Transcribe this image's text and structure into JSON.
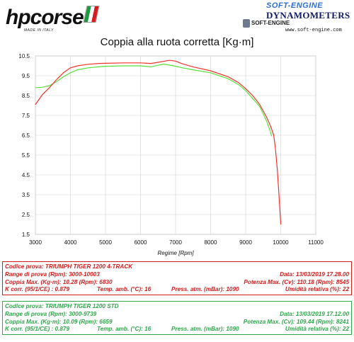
{
  "header": {
    "hp_logo_text": "hpcorse",
    "hp_sub": "MADE IN ITALY",
    "se_brand": "SOFT-ENGINE",
    "se_dyn": "DYNAMOMETERS",
    "se_logo": "SOFT-ENGINE",
    "se_url": "www.soft-engine.com"
  },
  "colors": {
    "red_series": "#f0342c",
    "green_series": "#57e03a"
  },
  "chart_data": {
    "type": "line",
    "title": "Coppia alla ruota corretta [Kg·m]",
    "xlabel": "Regime [Rpm]",
    "ylabel": "",
    "xlim": [
      3000,
      11000
    ],
    "ylim": [
      1.5,
      10.5
    ],
    "xticks": [
      "3000",
      "4000",
      "5000",
      "6000",
      "7000",
      "8000",
      "9000",
      "10000",
      "11000"
    ],
    "yticks": [
      "10.5",
      "9.5",
      "8.5",
      "7.5",
      "6.5",
      "5.5",
      "4.5",
      "3.5",
      "2.5",
      "1.5"
    ],
    "grid": true,
    "legend": "none",
    "series": [
      {
        "color": "red",
        "x": [
          3000,
          3200,
          3400,
          3600,
          3800,
          4000,
          4200,
          4500,
          4800,
          5000,
          5500,
          6000,
          6300,
          6500,
          6830,
          7000,
          7200,
          7500,
          8000,
          8500,
          8800,
          9000,
          9200,
          9400,
          9600,
          9700,
          9800,
          9850,
          9900,
          9950,
          10003
        ],
        "y": [
          8.05,
          8.55,
          8.9,
          9.3,
          9.65,
          9.9,
          10.0,
          10.08,
          10.12,
          10.13,
          10.15,
          10.15,
          10.12,
          10.18,
          10.28,
          10.24,
          10.1,
          9.95,
          9.75,
          9.45,
          9.15,
          8.85,
          8.5,
          8.05,
          7.4,
          7.0,
          6.5,
          5.8,
          4.8,
          3.5,
          2.0
        ]
      },
      {
        "color": "green",
        "x": [
          3000,
          3200,
          3400,
          3600,
          3800,
          4000,
          4200,
          4500,
          4800,
          5000,
          5500,
          6000,
          6300,
          6500,
          6659,
          6800,
          7000,
          7200,
          7500,
          8000,
          8500,
          8800,
          9000,
          9200,
          9400,
          9600,
          9700,
          9739
        ],
        "y": [
          8.9,
          8.92,
          9.0,
          9.2,
          9.45,
          9.65,
          9.8,
          9.9,
          9.95,
          9.98,
          10.0,
          10.0,
          9.95,
          10.03,
          10.09,
          10.05,
          9.98,
          9.9,
          9.8,
          9.65,
          9.35,
          9.05,
          8.75,
          8.35,
          7.95,
          7.2,
          6.7,
          6.45
        ]
      }
    ]
  },
  "panels": [
    {
      "color": "red",
      "codice": "Codice prova: TRIUMPH TIGER 1200 4-TRACK",
      "range": "Range di prova (Rpm): 3000-10003",
      "data": "Data: 13/03/2019   17.28.00",
      "coppia": "Coppia Max. (Kg·m): 10.28   (Rpm): 6830",
      "potenza": "Potenza Max. (Cv): 110.18   (Rpm): 8545",
      "kcorr": "K corr. (95/1/CE) : 0.879",
      "temp": "Temp. amb. (°C): 16",
      "press": "Press. atm. (mBar): 1090",
      "umid": "Umidità relativa (%): 22"
    },
    {
      "color": "green",
      "codice": "Codice prova: TRIUMPH TIGER 1200 STD",
      "range": "Range di prova (Rpm): 3000-9739",
      "data": "Data: 13/03/2019   17.12.00",
      "coppia": "Coppia Max. (Kg·m): 10.09   (Rpm): 6659",
      "potenza": "Potenza Max. (Cv): 109.44   (Rpm): 8241",
      "kcorr": "K corr. (95/1/CE) : 0.879",
      "temp": "Temp. amb. (°C): 16",
      "press": "Press. atm. (mBar): 1090",
      "umid": "Umidità relativa (%): 22"
    }
  ]
}
